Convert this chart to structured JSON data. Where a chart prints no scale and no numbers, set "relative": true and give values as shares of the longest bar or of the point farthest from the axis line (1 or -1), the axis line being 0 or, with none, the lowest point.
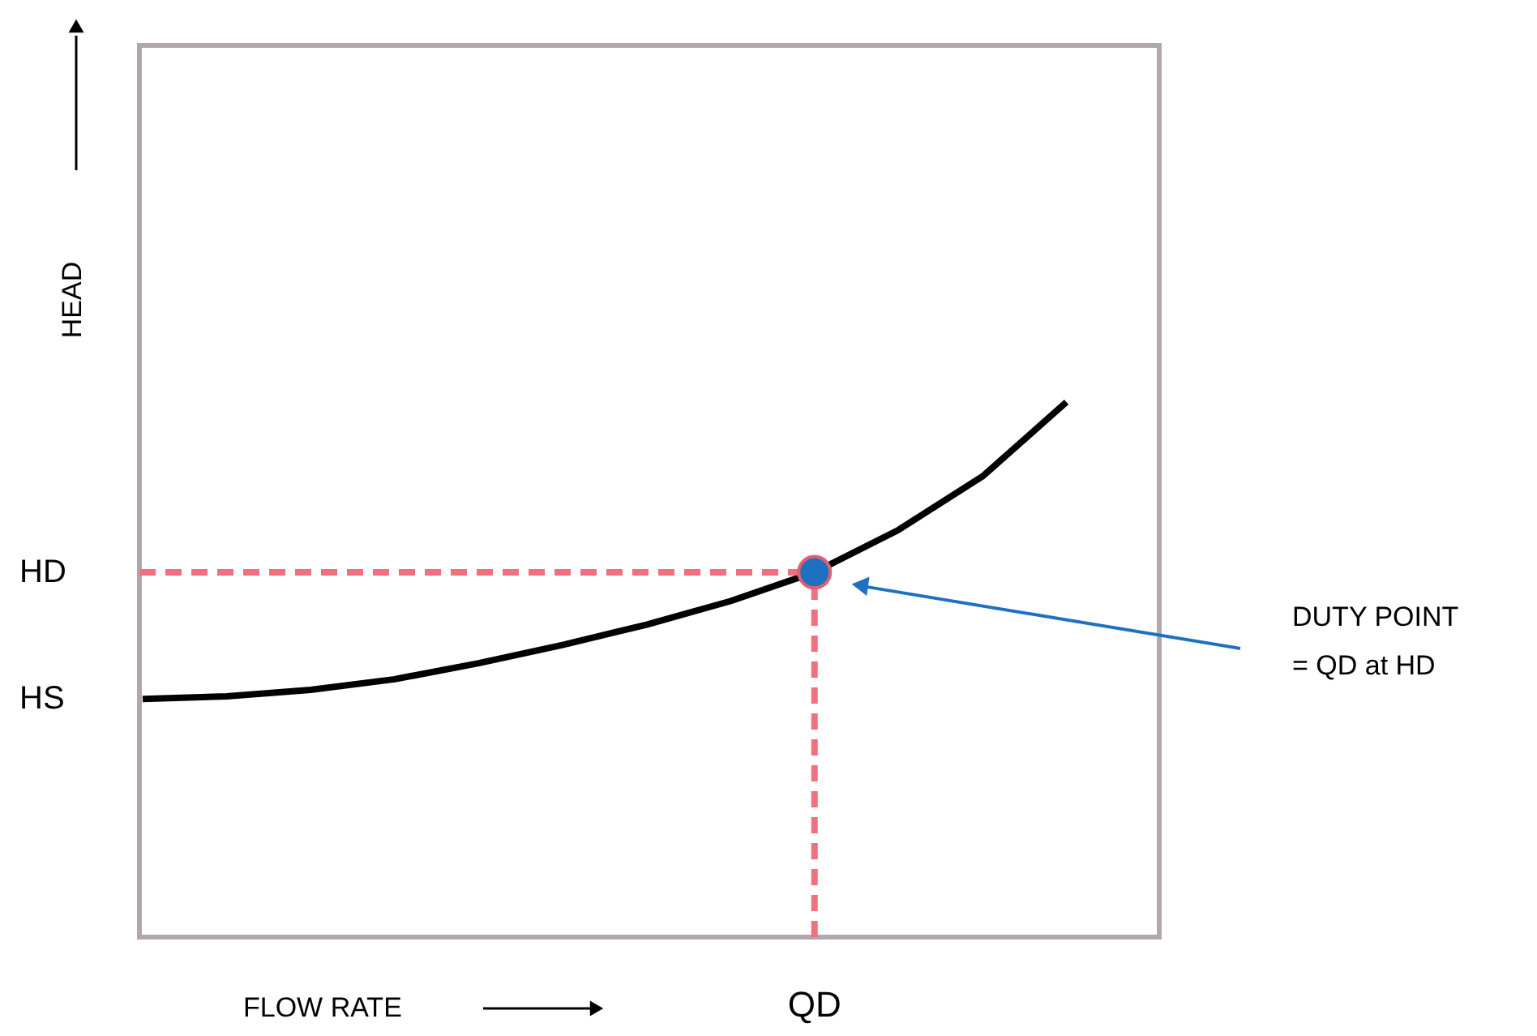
{
  "chart_data": {
    "type": "line",
    "relative": true,
    "xlabel": "FLOW RATE",
    "ylabel": "HEAD",
    "categories": [
      null,
      null,
      null,
      null,
      null,
      null,
      null,
      null,
      null,
      null,
      null,
      null
    ],
    "series": [
      {
        "color": "#000000",
        "values": [
          0.445,
          0.45,
          0.462,
          0.482,
          0.512,
          0.546,
          0.584,
          0.628,
          0.682,
          0.761,
          0.861,
          1
        ]
      }
    ],
    "line_style": "solid",
    "ref_lines": [
      {
        "axis": "x",
        "color": "#f07080",
        "line_style": "dashed"
      },
      {
        "axis": "y",
        "value": 0.682,
        "color": "#f07080",
        "line_style": "dashed"
      }
    ],
    "annotations": [
      "HD",
      "HS",
      "QD",
      "DUTY POINT\n= QD at HD"
    ],
    "grid": false
  }
}
